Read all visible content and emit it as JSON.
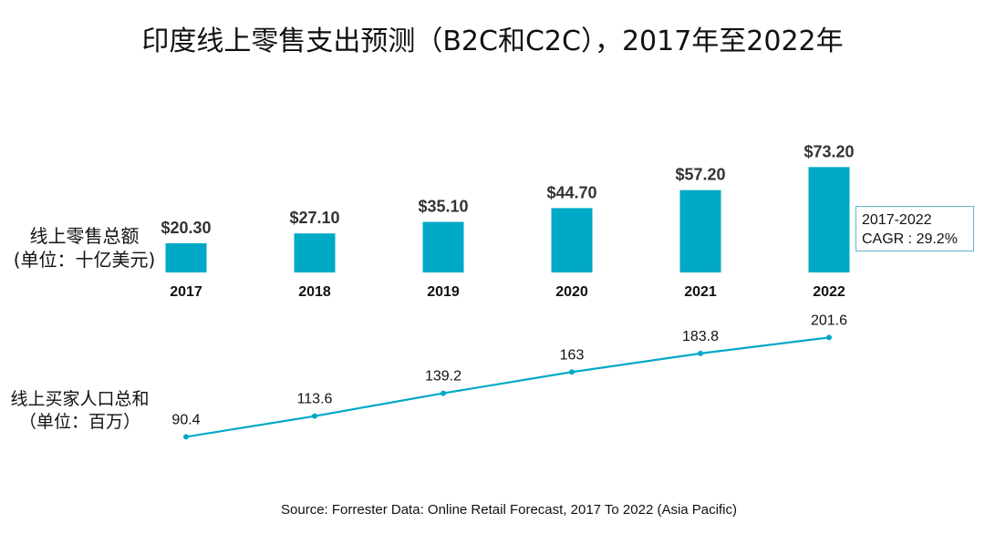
{
  "title": "印度线上零售支出预测（B2C和C2C），2017年至2022年",
  "source": "Source: Forrester Data: Online Retail Forecast, 2017 To 2022 (Asia Pacific)",
  "colors": {
    "accent": "#00a9c6"
  },
  "chart_data": [
    {
      "type": "bar",
      "ylabel": [
        "线上零售总额",
        "(单位：十亿美元)"
      ],
      "categories": [
        "2017",
        "2018",
        "2019",
        "2020",
        "2021",
        "2022"
      ],
      "values": [
        20.3,
        27.1,
        35.1,
        44.7,
        57.2,
        73.2
      ],
      "value_labels": [
        "$20.30",
        "$27.10",
        "$35.10",
        "$44.70",
        "$57.20",
        "$73.20"
      ],
      "annotation": [
        "2017-2022",
        "CAGR : 29.2%"
      ]
    },
    {
      "type": "line",
      "ylabel": [
        "线上买家人口总和",
        "（单位：百万）"
      ],
      "x": [
        "2017",
        "2018",
        "2019",
        "2020",
        "2021",
        "2022"
      ],
      "values": [
        90.4,
        113.6,
        139.2,
        163,
        183.8,
        201.6
      ],
      "value_labels": [
        "90.4",
        "113.6",
        "139.2",
        "163",
        "183.8",
        "201.6"
      ]
    }
  ]
}
